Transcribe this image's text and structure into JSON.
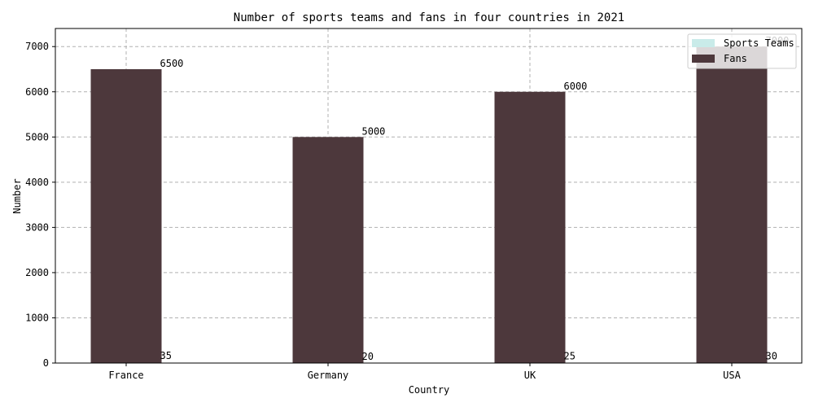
{
  "chart_data": {
    "type": "bar",
    "title": "Number of sports teams and fans in four countries in 2021",
    "xlabel": "Country",
    "ylabel": "Number",
    "categories": [
      "France",
      "Germany",
      "UK",
      "USA"
    ],
    "series": [
      {
        "name": "Sports Teams",
        "values": [
          35,
          20,
          25,
          30
        ],
        "color": "#c9ebe9"
      },
      {
        "name": "Fans",
        "values": [
          6500,
          5000,
          6000,
          7000
        ],
        "color": "#4d383c"
      }
    ],
    "ylim": [
      0,
      7400
    ],
    "yticks": [
      "0",
      "1000",
      "2000",
      "3000",
      "4000",
      "5000",
      "6000",
      "7000"
    ],
    "grid": true,
    "legend_position": "top-right"
  }
}
